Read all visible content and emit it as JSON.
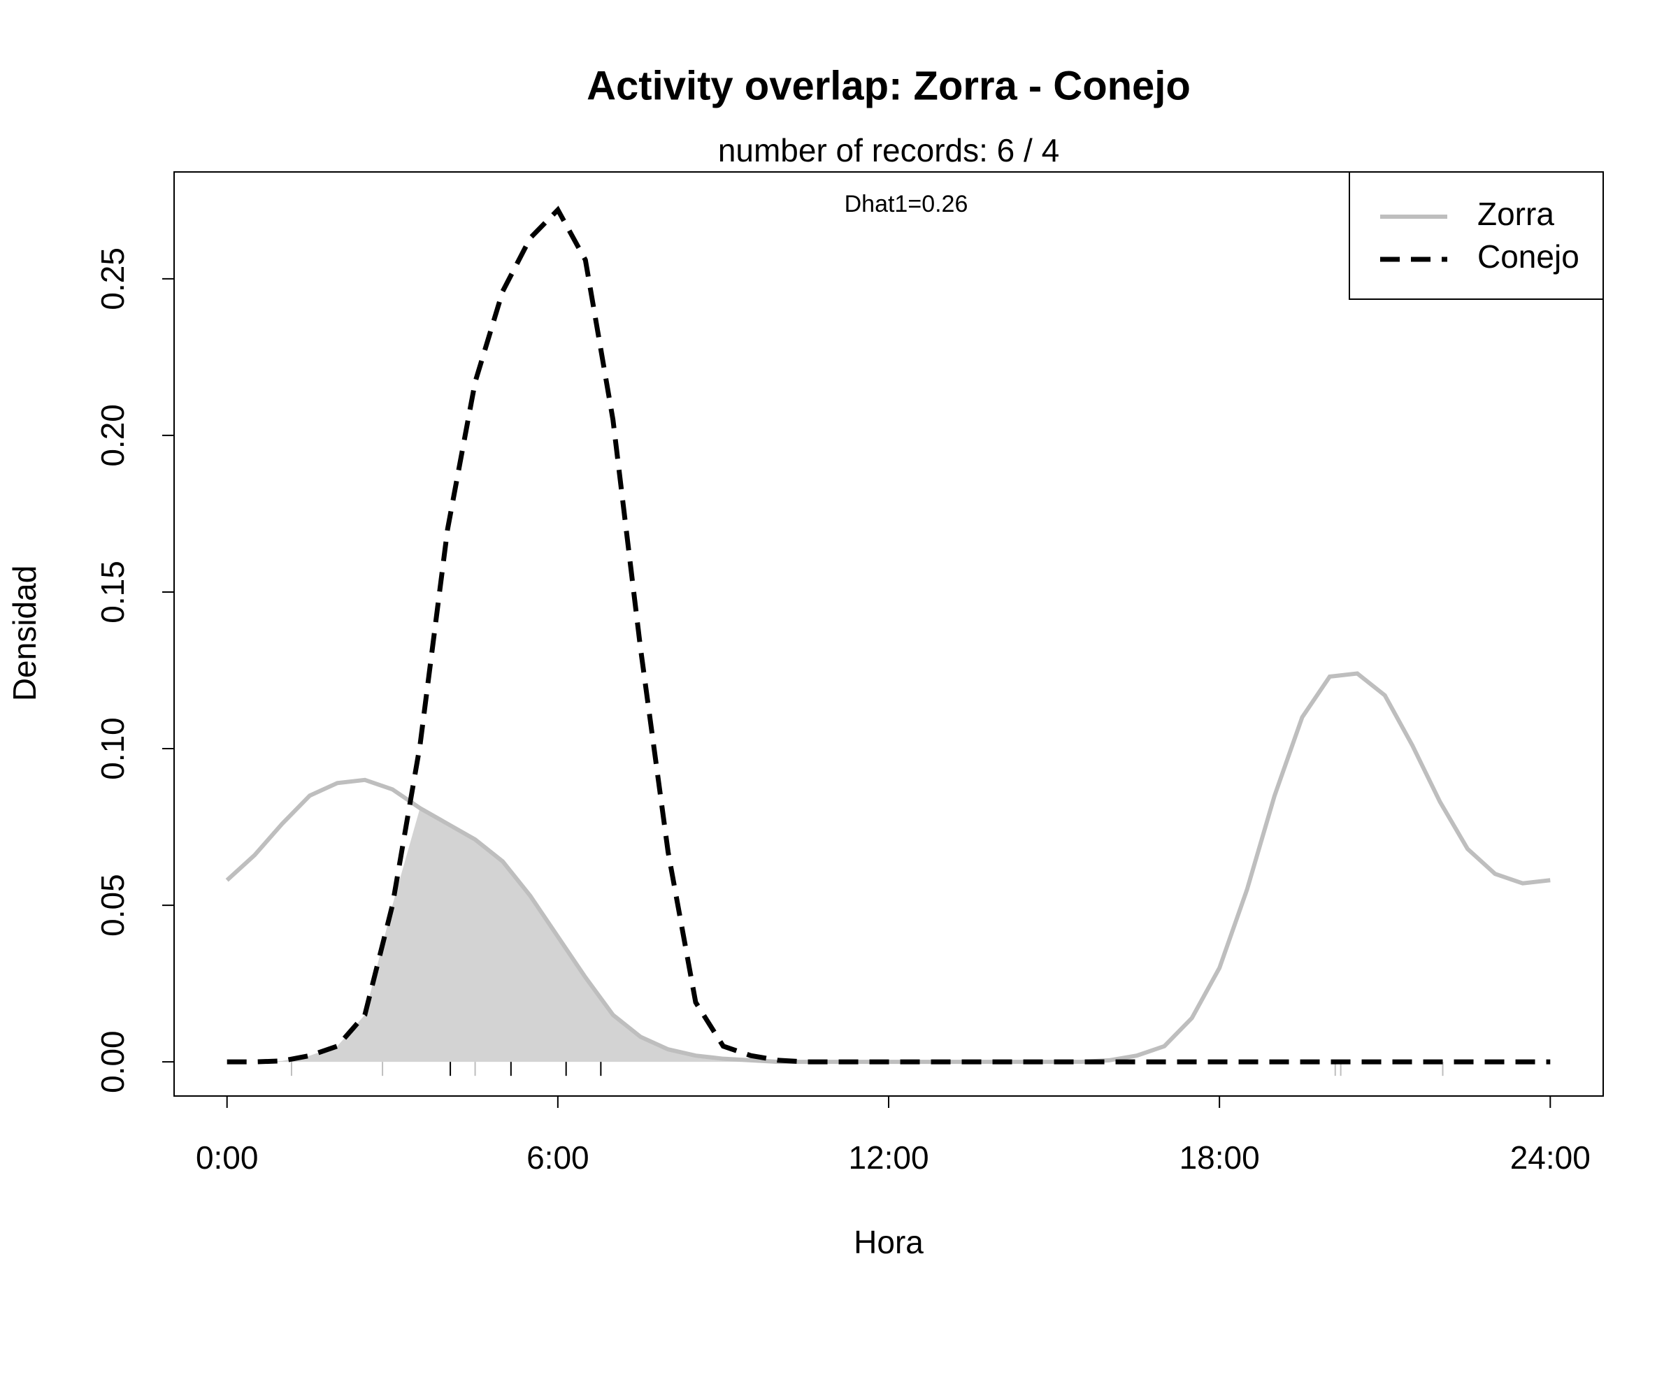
{
  "chart_data": {
    "type": "line",
    "title": "Activity overlap:  Zorra - Conejo",
    "subtitle": "number of records: 6 / 4",
    "annotation": "Dhat1=0.26",
    "xlabel": "Hora",
    "ylabel": "Densidad",
    "x": [
      0,
      0.5,
      1,
      1.5,
      2,
      2.5,
      3,
      3.5,
      4,
      4.5,
      5,
      5.5,
      6,
      6.5,
      7,
      7.5,
      8,
      8.5,
      9,
      9.5,
      10,
      10.5,
      11,
      11.5,
      12,
      12.5,
      13,
      13.5,
      14,
      14.5,
      15,
      15.5,
      16,
      16.5,
      17,
      17.5,
      18,
      18.5,
      19,
      19.5,
      20,
      20.5,
      21,
      21.5,
      22,
      22.5,
      23,
      23.5,
      24
    ],
    "series": [
      {
        "name": "Zorra",
        "color": "#bebebe",
        "dash": false,
        "values": [
          0.058,
          0.066,
          0.076,
          0.085,
          0.089,
          0.09,
          0.087,
          0.081,
          0.076,
          0.071,
          0.064,
          0.053,
          0.04,
          0.027,
          0.015,
          0.008,
          0.004,
          0.002,
          0.001,
          0.0005,
          0,
          0,
          0,
          0,
          0,
          0,
          0,
          0,
          0,
          0,
          0,
          0,
          0.0005,
          0.002,
          0.005,
          0.014,
          0.03,
          0.055,
          0.085,
          0.11,
          0.123,
          0.124,
          0.117,
          0.101,
          0.083,
          0.068,
          0.06,
          0.057,
          0.058
        ],
        "records": [
          1.17,
          2.82,
          4.5,
          20.1,
          20.2,
          22.05
        ]
      },
      {
        "name": "Conejo",
        "color": "#000000",
        "dash": true,
        "values": [
          0,
          0,
          0.0003,
          0.002,
          0.005,
          0.015,
          0.05,
          0.101,
          0.17,
          0.217,
          0.246,
          0.263,
          0.272,
          0.256,
          0.205,
          0.132,
          0.067,
          0.019,
          0.005,
          0.002,
          0.0005,
          0,
          0,
          0,
          0,
          0,
          0,
          0,
          0,
          0,
          0,
          0,
          0,
          0,
          0,
          0,
          0,
          0,
          0,
          0,
          0,
          0,
          0,
          0,
          0,
          0,
          0,
          0,
          0
        ],
        "records": [
          4.05,
          5.15,
          6.15,
          6.78
        ]
      }
    ],
    "overlap_color": "#d3d3d3",
    "xlim": [
      -0.96,
      24.96
    ],
    "ylim": [
      -0.0109,
      0.2841
    ],
    "xticks": [
      {
        "value": 0,
        "label": "0:00"
      },
      {
        "value": 6,
        "label": "6:00"
      },
      {
        "value": 12,
        "label": "12:00"
      },
      {
        "value": 18,
        "label": "18:00"
      },
      {
        "value": 24,
        "label": "24:00"
      }
    ],
    "yticks": [
      {
        "value": 0,
        "label": "0.00"
      },
      0.05,
      {
        "value": 0.1,
        "label": "0.10"
      },
      0.15,
      {
        "value": 0.2,
        "label": "0.20"
      },
      0.25
    ],
    "legend": "top-right"
  }
}
